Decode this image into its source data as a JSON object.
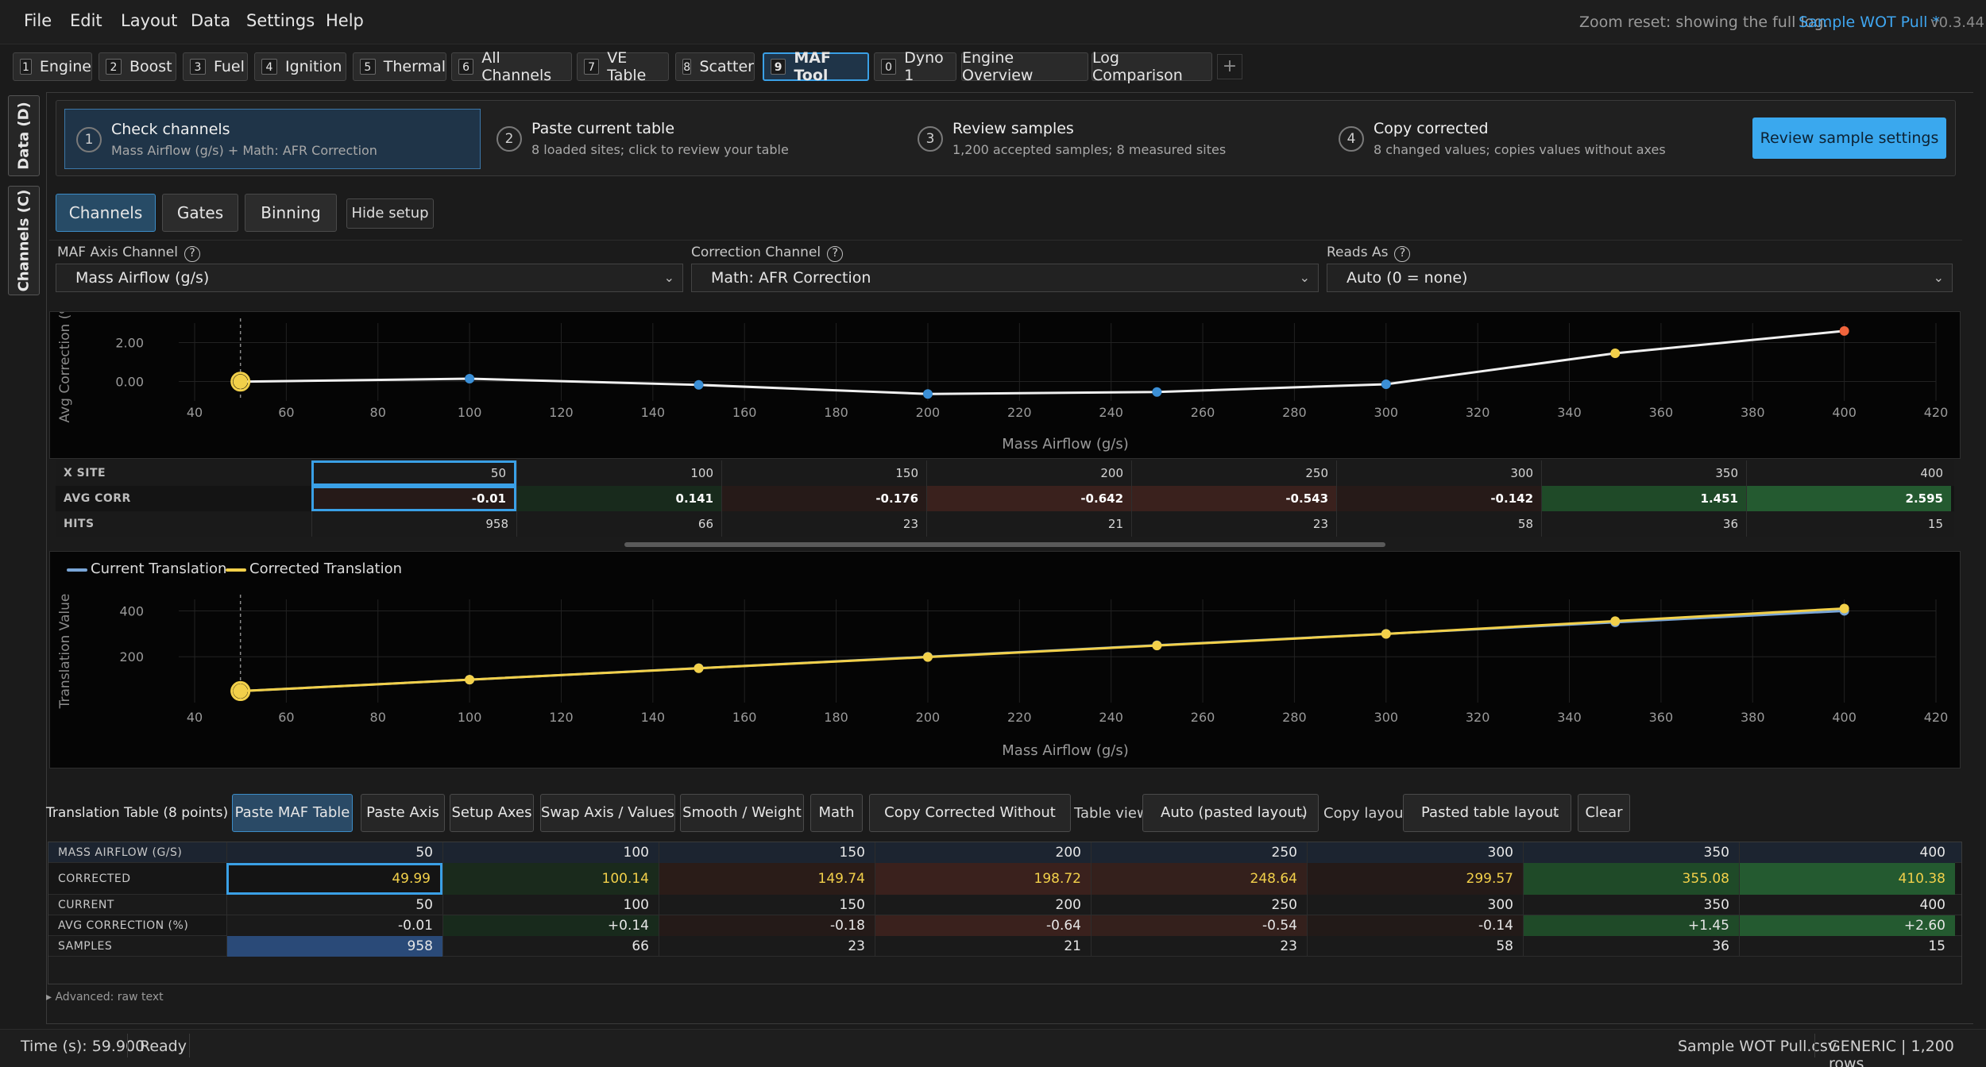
{
  "menu": [
    "File",
    "Edit",
    "Layout",
    "Data",
    "Settings",
    "Help"
  ],
  "header": {
    "status": "Zoom reset: showing the full log.",
    "file": "Sample WOT Pull *",
    "version": "v0.3.44"
  },
  "tabs": [
    {
      "num": "1",
      "label": "Engine"
    },
    {
      "num": "2",
      "label": "Boost"
    },
    {
      "num": "3",
      "label": "Fuel"
    },
    {
      "num": "4",
      "label": "Ignition"
    },
    {
      "num": "5",
      "label": "Thermal"
    },
    {
      "num": "6",
      "label": "All Channels"
    },
    {
      "num": "7",
      "label": "VE Table"
    },
    {
      "num": "8",
      "label": "Scatter"
    },
    {
      "num": "9",
      "label": "MAF Tool"
    },
    {
      "num": "0",
      "label": "Dyno 1"
    },
    {
      "num": "",
      "label": "Engine Overview"
    },
    {
      "num": "",
      "label": "Log Comparison"
    }
  ],
  "tab_add": "+",
  "sidetabs": [
    "Data (D)",
    "Channels (C)"
  ],
  "steps": [
    {
      "num": "1",
      "title": "Check channels",
      "sub": "Mass Airflow (g/s) + Math: AFR Correction"
    },
    {
      "num": "2",
      "title": "Paste current table",
      "sub": "8 loaded sites; click to review your table"
    },
    {
      "num": "3",
      "title": "Review samples",
      "sub": "1,200 accepted samples; 8 measured sites"
    },
    {
      "num": "4",
      "title": "Copy corrected",
      "sub": "8 changed values; copies values without axes"
    }
  ],
  "review_button": "Review sample settings",
  "setup_tabs": [
    "Channels",
    "Gates",
    "Binning"
  ],
  "hide_setup": "Hide setup",
  "selectors": [
    {
      "label": "MAF Axis Channel",
      "value": "Mass Airflow (g/s)"
    },
    {
      "label": "Correction Channel",
      "value": "Math: AFR Correction"
    },
    {
      "label": "Reads As",
      "value": "Auto (0 = none)"
    }
  ],
  "help_glyph": "?",
  "chevron": "⌄",
  "chart_data": [
    {
      "type": "line",
      "ylabel": "Avg Correction (%",
      "xlabel": "Mass Airflow (g/s)",
      "xlim": [
        40,
        420
      ],
      "xticks": [
        40,
        60,
        80,
        100,
        120,
        140,
        160,
        180,
        200,
        220,
        240,
        260,
        280,
        300,
        320,
        340,
        360,
        380,
        400,
        420
      ],
      "yticks": [
        "2.00",
        "0.00"
      ],
      "ylim": [
        -1.0,
        3.0
      ],
      "grid": true,
      "x": [
        50,
        100,
        150,
        200,
        250,
        300,
        350,
        400
      ],
      "series": [
        {
          "values": [
            -0.01,
            0.141,
            -0.176,
            -0.642,
            -0.543,
            -0.142,
            1.451,
            2.595
          ]
        }
      ],
      "point_colors": [
        "#f2d04a",
        "#3b8fd6",
        "#3b8fd6",
        "#3b8fd6",
        "#3b8fd6",
        "#3b8fd6",
        "#f2d04a",
        "#f0643c"
      ],
      "cursor_x": 50
    },
    {
      "type": "line",
      "ylabel": "Translation Value",
      "xlabel": "Mass Airflow (g/s)",
      "xlim": [
        40,
        420
      ],
      "xticks": [
        40,
        60,
        80,
        100,
        120,
        140,
        160,
        180,
        200,
        220,
        240,
        260,
        280,
        300,
        320,
        340,
        360,
        380,
        400,
        420
      ],
      "yticks": [
        "400",
        "200"
      ],
      "ylim": [
        0,
        450
      ],
      "grid": true,
      "legend": "top-left",
      "x": [
        50,
        100,
        150,
        200,
        250,
        300,
        350,
        400
      ],
      "series": [
        {
          "name": "Current Translation",
          "color": "#7aa6d8",
          "values": [
            50,
            100,
            150,
            200,
            250,
            300,
            350,
            400
          ]
        },
        {
          "name": "Corrected Translation",
          "color": "#f2d04a",
          "values": [
            49.99,
            100.14,
            149.74,
            198.72,
            248.64,
            299.57,
            355.08,
            410.38
          ]
        }
      ],
      "cursor_x": 50
    }
  ],
  "mini_table": {
    "rows": [
      {
        "label": "X SITE",
        "values": [
          "50",
          "100",
          "150",
          "200",
          "250",
          "300",
          "350",
          "400"
        ]
      },
      {
        "label": "AVG CORR",
        "values": [
          "-0.01",
          "0.141",
          "-0.176",
          "-0.642",
          "-0.543",
          "-0.142",
          "1.451",
          "2.595"
        ]
      },
      {
        "label": "HITS",
        "values": [
          "958",
          "66",
          "23",
          "21",
          "23",
          "58",
          "36",
          "15"
        ]
      }
    ]
  },
  "translation": {
    "title": "Translation Table (8 points)",
    "buttons": [
      "Paste MAF Table",
      "Paste Axis",
      "Setup Axes",
      "Swap Axis / Values",
      "Smooth / Weight",
      "Math",
      "Copy Corrected Without Axes"
    ],
    "table_view_label": "Table view",
    "table_view_value": "Auto (pasted layout)",
    "copy_layout_label": "Copy layout",
    "copy_layout_value": "Pasted table layout",
    "clear": "Clear",
    "rows": [
      {
        "label": "MASS AIRFLOW (G/S)",
        "values": [
          "50",
          "100",
          "150",
          "200",
          "250",
          "300",
          "350",
          "400"
        ]
      },
      {
        "label": "CORRECTED",
        "values": [
          "49.99",
          "100.14",
          "149.74",
          "198.72",
          "248.64",
          "299.57",
          "355.08",
          "410.38"
        ]
      },
      {
        "label": "CURRENT",
        "values": [
          "50",
          "100",
          "150",
          "200",
          "250",
          "300",
          "350",
          "400"
        ]
      },
      {
        "label": "AVG CORRECTION (%)",
        "values": [
          "-0.01",
          "+0.14",
          "-0.18",
          "-0.64",
          "-0.54",
          "-0.14",
          "+1.45",
          "+2.60"
        ]
      },
      {
        "label": "SAMPLES",
        "values": [
          "958",
          "66",
          "23",
          "21",
          "23",
          "58",
          "36",
          "15"
        ]
      }
    ],
    "advanced": "▸ Advanced: raw text"
  },
  "statusbar": {
    "time": "Time (s): 59.900",
    "state": "Ready",
    "file": "Sample WOT Pull.csv",
    "info": "GENERIC | 1,200 rows"
  },
  "colors": {
    "accent": "#3aa0e6",
    "corr_pos": "#1f4a2a",
    "corr_neg": "#4a2420",
    "highlight": "#1f3a5c"
  }
}
